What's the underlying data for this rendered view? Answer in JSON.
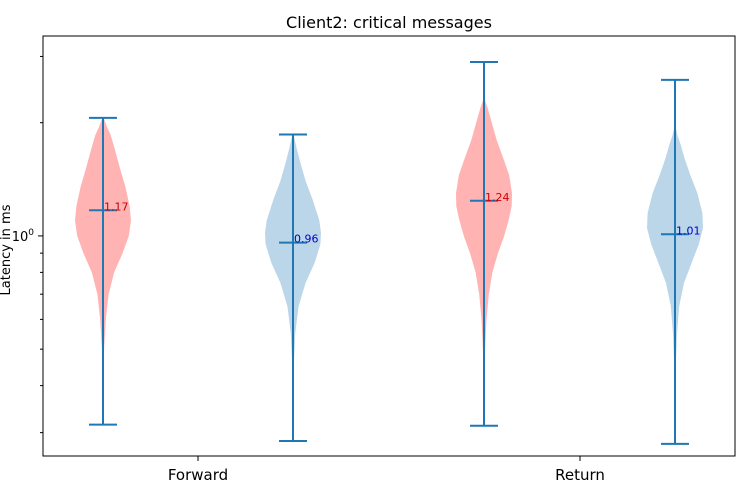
{
  "chart_data": {
    "type": "violin",
    "title": "Client2: critical messages",
    "xlabel": "",
    "ylabel": "Latency in ms",
    "yscale": "log",
    "ylim": [
      0.26,
      3.4
    ],
    "yticks": [
      {
        "value": 1,
        "label": "10^0"
      }
    ],
    "categories": [
      "Forward",
      "Return"
    ],
    "grid": false,
    "legend": "none",
    "colors": {
      "red": "#ff9999",
      "blue": "#a6c8e2",
      "line": "#1f77b4",
      "red_text": "#cc0000",
      "blue_text": "#0000cc"
    },
    "violins": [
      {
        "category": "Forward",
        "color": "red",
        "min": 0.315,
        "max": 2.06,
        "median": 1.17,
        "label": "1.17",
        "shape": [
          [
            0.315,
            0.0
          ],
          [
            0.4,
            0.01
          ],
          [
            0.5,
            0.04
          ],
          [
            0.6,
            0.1
          ],
          [
            0.7,
            0.2
          ],
          [
            0.8,
            0.4
          ],
          [
            0.9,
            0.7
          ],
          [
            1.0,
            0.92
          ],
          [
            1.1,
            1.0
          ],
          [
            1.2,
            0.95
          ],
          [
            1.35,
            0.8
          ],
          [
            1.5,
            0.62
          ],
          [
            1.7,
            0.42
          ],
          [
            1.85,
            0.28
          ],
          [
            1.95,
            0.14
          ],
          [
            2.06,
            0.02
          ]
        ]
      },
      {
        "category": "Forward",
        "color": "blue",
        "min": 0.285,
        "max": 1.86,
        "median": 0.96,
        "label": "0.96",
        "shape": [
          [
            0.285,
            0.0
          ],
          [
            0.35,
            0.01
          ],
          [
            0.45,
            0.03
          ],
          [
            0.55,
            0.08
          ],
          [
            0.65,
            0.2
          ],
          [
            0.75,
            0.45
          ],
          [
            0.85,
            0.78
          ],
          [
            0.95,
            0.98
          ],
          [
            1.02,
            1.0
          ],
          [
            1.1,
            0.94
          ],
          [
            1.25,
            0.7
          ],
          [
            1.4,
            0.45
          ],
          [
            1.55,
            0.28
          ],
          [
            1.7,
            0.14
          ],
          [
            1.86,
            0.02
          ]
        ]
      },
      {
        "category": "Return",
        "color": "red",
        "min": 0.313,
        "max": 2.9,
        "median": 1.24,
        "label": "1.24",
        "shape": [
          [
            0.313,
            0.0
          ],
          [
            0.4,
            0.01
          ],
          [
            0.5,
            0.04
          ],
          [
            0.6,
            0.09
          ],
          [
            0.7,
            0.17
          ],
          [
            0.8,
            0.3
          ],
          [
            0.9,
            0.5
          ],
          [
            1.0,
            0.72
          ],
          [
            1.1,
            0.88
          ],
          [
            1.2,
            0.99
          ],
          [
            1.3,
            1.0
          ],
          [
            1.45,
            0.9
          ],
          [
            1.6,
            0.7
          ],
          [
            1.8,
            0.45
          ],
          [
            2.0,
            0.28
          ],
          [
            2.2,
            0.12
          ],
          [
            2.3,
            0.03
          ],
          [
            2.9,
            0.0
          ]
        ]
      },
      {
        "category": "Return",
        "color": "blue",
        "min": 0.28,
        "max": 2.6,
        "median": 1.01,
        "label": "1.01",
        "shape": [
          [
            0.28,
            0.0
          ],
          [
            0.35,
            0.01
          ],
          [
            0.45,
            0.03
          ],
          [
            0.55,
            0.07
          ],
          [
            0.65,
            0.15
          ],
          [
            0.75,
            0.32
          ],
          [
            0.85,
            0.6
          ],
          [
            0.95,
            0.85
          ],
          [
            1.05,
            1.0
          ],
          [
            1.15,
            0.98
          ],
          [
            1.3,
            0.8
          ],
          [
            1.45,
            0.55
          ],
          [
            1.6,
            0.35
          ],
          [
            1.75,
            0.2
          ],
          [
            1.85,
            0.09
          ],
          [
            1.95,
            0.02
          ],
          [
            2.6,
            0.0
          ]
        ]
      }
    ]
  }
}
